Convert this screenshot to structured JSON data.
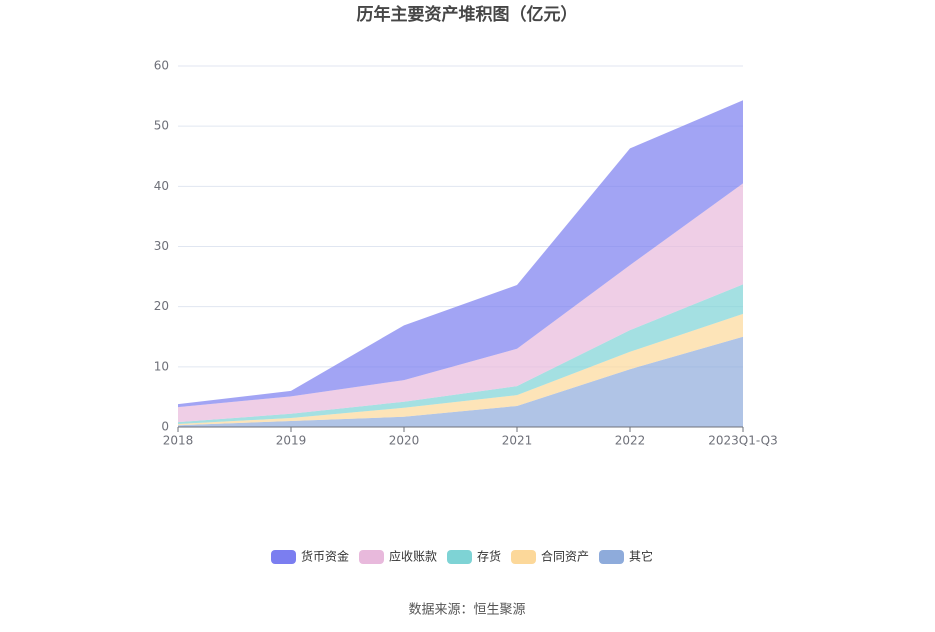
{
  "chart_data": {
    "type": "stacked_area",
    "title": "历年主要资产堆积图（亿元）",
    "source": "数据来源：恒生聚源",
    "categories": [
      "2018",
      "2019",
      "2020",
      "2021",
      "2022",
      "2023Q1-Q3"
    ],
    "series": [
      {
        "name": "货币资金",
        "color": "#7b7ef0",
        "values": [
          0.5,
          0.9,
          9.1,
          10.6,
          19.4,
          13.8
        ]
      },
      {
        "name": "应收账款",
        "color": "#e8b9dc",
        "values": [
          2.5,
          2.9,
          3.6,
          6.2,
          10.8,
          16.8
        ]
      },
      {
        "name": "存货",
        "color": "#7ed3d5",
        "values": [
          0.3,
          0.7,
          1.0,
          1.5,
          3.6,
          4.9
        ]
      },
      {
        "name": "合同资产",
        "color": "#fcd89a",
        "values": [
          0.2,
          0.5,
          1.5,
          1.8,
          2.9,
          3.8
        ]
      },
      {
        "name": "其它",
        "color": "#8eabdb",
        "values": [
          0.3,
          1.0,
          1.7,
          3.5,
          9.6,
          15.0
        ]
      }
    ],
    "ylim": [
      0,
      60
    ],
    "yticks": [
      0,
      10,
      20,
      30,
      40,
      50,
      60
    ],
    "grid": true
  }
}
